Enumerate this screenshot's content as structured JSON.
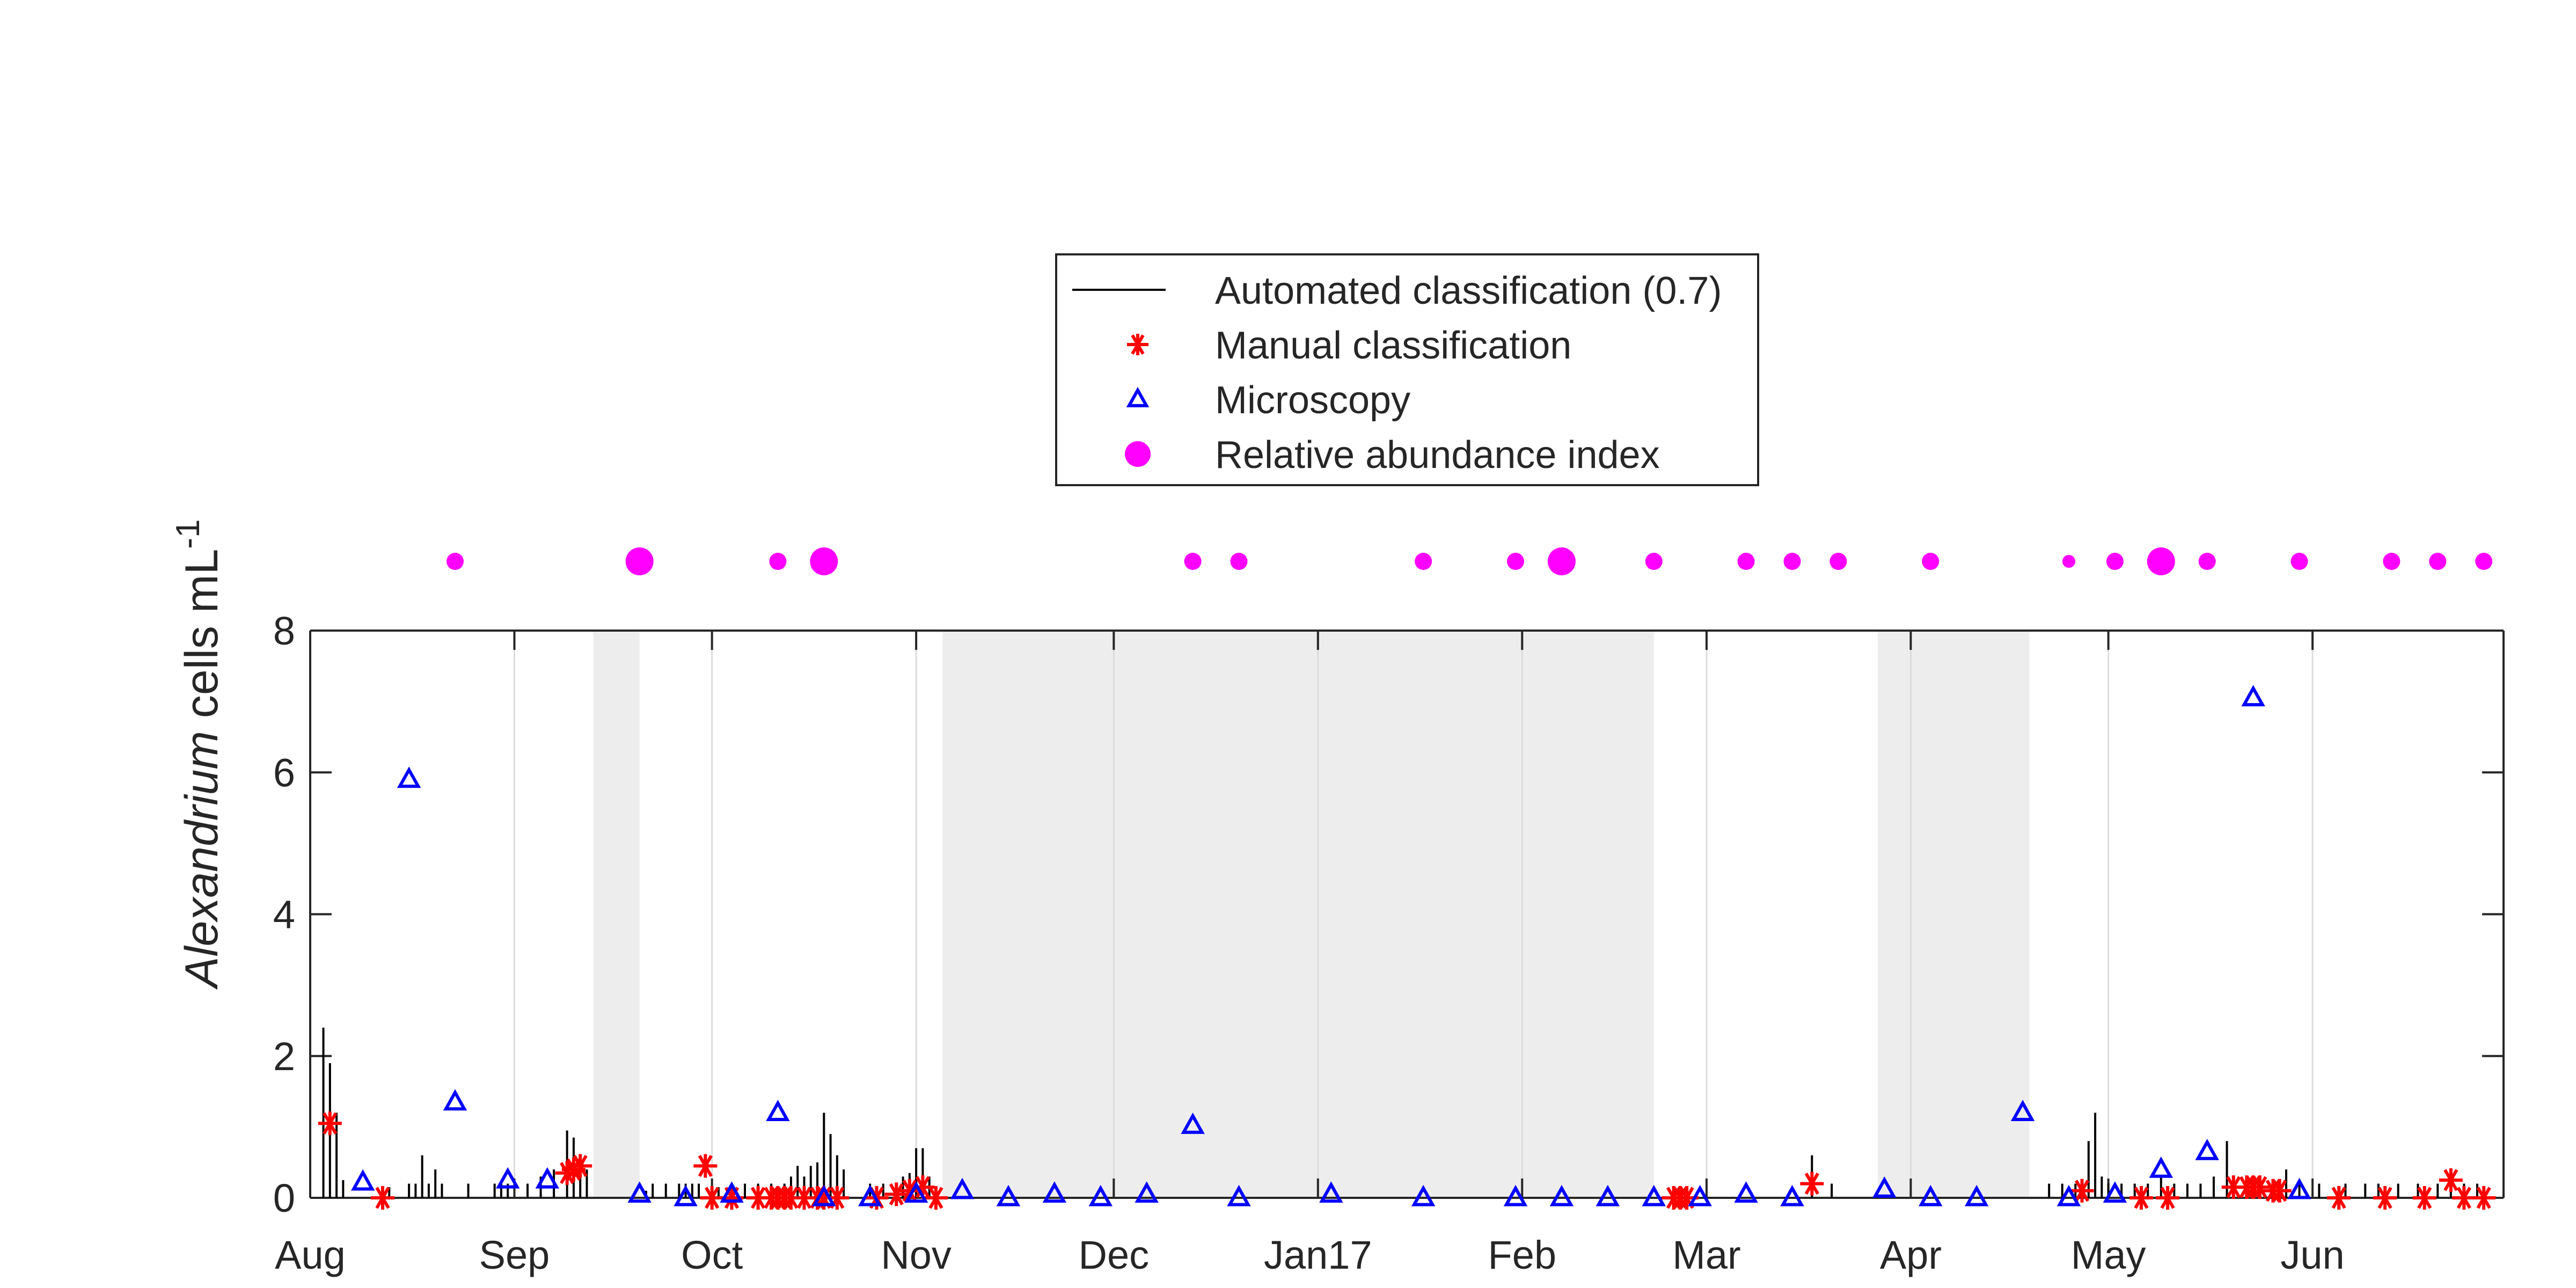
{
  "chart_data": {
    "type": "scatter",
    "title": "",
    "ylabel": {
      "italic": "Alexandrium",
      "normal": " cells mL",
      "sup": "-1"
    },
    "xlabel": "",
    "y_ticks": [
      0,
      2,
      4,
      6,
      8
    ],
    "ylim": [
      0,
      8
    ],
    "x_tick_labels": [
      "Aug",
      "Sep",
      "Oct",
      "Nov",
      "Dec",
      "Jan17",
      "Feb",
      "Mar",
      "Apr",
      "May",
      "Jun"
    ],
    "x_tick_dates": [
      "2016-08-01",
      "2016-09-01",
      "2016-10-01",
      "2016-11-01",
      "2016-12-01",
      "2017-01-01",
      "2017-02-01",
      "2017-03-01",
      "2017-04-01",
      "2017-05-01",
      "2017-06-01"
    ],
    "xlim": [
      "2016-08-01",
      "2017-06-30"
    ],
    "grid": "vertical at month ticks",
    "shaded_periods": [
      [
        "2016-09-13",
        "2016-09-20"
      ],
      [
        "2016-11-05",
        "2017-02-21"
      ],
      [
        "2017-03-27",
        "2017-04-19"
      ]
    ],
    "legend": {
      "placement": "top-center",
      "entries": [
        {
          "label": "Automated classification (0.7)",
          "marker": "line",
          "color": "#000000"
        },
        {
          "label": "Manual classification",
          "marker": "asterisk",
          "color": "#ff0000"
        },
        {
          "label": "Microscopy",
          "marker": "triangle",
          "color": "#0000ff"
        },
        {
          "label": "Relative abundance index",
          "marker": "filled-circle",
          "color": "#ff00ff"
        }
      ]
    },
    "series": [
      {
        "name": "Automated classification (0.7)",
        "style": "vertical-stems",
        "color": "#000000",
        "points": [
          [
            "2016-08-03",
            2.4
          ],
          [
            "2016-08-04",
            1.9
          ],
          [
            "2016-08-05",
            1.2
          ],
          [
            "2016-08-06",
            0.25
          ],
          [
            "2016-08-13",
            0.15
          ],
          [
            "2016-08-16",
            0.2
          ],
          [
            "2016-08-17",
            0.2
          ],
          [
            "2016-08-18",
            0.6
          ],
          [
            "2016-08-19",
            0.2
          ],
          [
            "2016-08-20",
            0.4
          ],
          [
            "2016-08-21",
            0.2
          ],
          [
            "2016-08-25",
            0.2
          ],
          [
            "2016-08-29",
            0.2
          ],
          [
            "2016-08-30",
            0.2
          ],
          [
            "2016-08-31",
            0.2
          ],
          [
            "2016-09-03",
            0.2
          ],
          [
            "2016-09-05",
            0.3
          ],
          [
            "2016-09-07",
            0.4
          ],
          [
            "2016-09-09",
            0.95
          ],
          [
            "2016-09-10",
            0.85
          ],
          [
            "2016-09-11",
            0.6
          ],
          [
            "2016-09-12",
            0.4
          ],
          [
            "2016-09-21",
            0.1
          ],
          [
            "2016-09-22",
            0.2
          ],
          [
            "2016-09-24",
            0.2
          ],
          [
            "2016-09-26",
            0.2
          ],
          [
            "2016-09-27",
            0.2
          ],
          [
            "2016-09-28",
            0.2
          ],
          [
            "2016-09-29",
            0.2
          ],
          [
            "2016-10-02",
            0.15
          ],
          [
            "2016-10-04",
            0.15
          ],
          [
            "2016-10-06",
            0.2
          ],
          [
            "2016-10-08",
            0.2
          ],
          [
            "2016-10-10",
            0.2
          ],
          [
            "2016-10-12",
            0.2
          ],
          [
            "2016-10-13",
            0.3
          ],
          [
            "2016-10-14",
            0.45
          ],
          [
            "2016-10-15",
            0.3
          ],
          [
            "2016-10-16",
            0.45
          ],
          [
            "2016-10-17",
            0.5
          ],
          [
            "2016-10-18",
            1.2
          ],
          [
            "2016-10-19",
            0.9
          ],
          [
            "2016-10-20",
            0.6
          ],
          [
            "2016-10-21",
            0.4
          ],
          [
            "2016-10-25",
            0.2
          ],
          [
            "2016-10-27",
            0.2
          ],
          [
            "2016-10-29",
            0.2
          ],
          [
            "2016-10-30",
            0.3
          ],
          [
            "2016-10-31",
            0.35
          ],
          [
            "2016-11-01",
            0.7
          ],
          [
            "2016-11-02",
            0.7
          ],
          [
            "2016-11-03",
            0.3
          ],
          [
            "2017-03-17",
            0.6
          ],
          [
            "2017-03-20",
            0.2
          ],
          [
            "2017-04-22",
            0.2
          ],
          [
            "2017-04-24",
            0.2
          ],
          [
            "2017-04-26",
            0.2
          ],
          [
            "2017-04-27",
            0.2
          ],
          [
            "2017-04-28",
            0.8
          ],
          [
            "2017-04-29",
            1.2
          ],
          [
            "2017-04-30",
            0.3
          ],
          [
            "2017-05-01",
            0.2
          ],
          [
            "2017-05-03",
            0.2
          ],
          [
            "2017-05-05",
            0.2
          ],
          [
            "2017-05-07",
            0.2
          ],
          [
            "2017-05-09",
            0.3
          ],
          [
            "2017-05-11",
            0.2
          ],
          [
            "2017-05-13",
            0.2
          ],
          [
            "2017-05-15",
            0.2
          ],
          [
            "2017-05-17",
            0.3
          ],
          [
            "2017-05-19",
            0.8
          ],
          [
            "2017-05-20",
            0.3
          ],
          [
            "2017-05-22",
            0.2
          ],
          [
            "2017-05-24",
            0.2
          ],
          [
            "2017-05-26",
            0.2
          ],
          [
            "2017-05-28",
            0.4
          ],
          [
            "2017-05-30",
            0.2
          ],
          [
            "2017-06-02",
            0.2
          ],
          [
            "2017-06-06",
            0.2
          ],
          [
            "2017-06-09",
            0.2
          ],
          [
            "2017-06-11",
            0.2
          ],
          [
            "2017-06-14",
            0.2
          ],
          [
            "2017-06-17",
            0.2
          ],
          [
            "2017-06-20",
            0.2
          ],
          [
            "2017-06-22",
            0.2
          ],
          [
            "2017-06-24",
            0.2
          ],
          [
            "2017-06-26",
            0.2
          ]
        ]
      },
      {
        "name": "Manual classification",
        "style": "asterisk",
        "color": "#ff0000",
        "points": [
          [
            "2016-08-04",
            1.05
          ],
          [
            "2016-08-12",
            0.0
          ],
          [
            "2016-09-09",
            0.35
          ],
          [
            "2016-09-10",
            0.4
          ],
          [
            "2016-09-11",
            0.45
          ],
          [
            "2016-09-30",
            0.45
          ],
          [
            "2016-10-01",
            0.0
          ],
          [
            "2016-10-04",
            0.0
          ],
          [
            "2016-10-08",
            0.0
          ],
          [
            "2016-10-10",
            0.0
          ],
          [
            "2016-10-11",
            0.0
          ],
          [
            "2016-10-12",
            0.0
          ],
          [
            "2016-10-13",
            0.0
          ],
          [
            "2016-10-15",
            0.0
          ],
          [
            "2016-10-17",
            0.0
          ],
          [
            "2016-10-18",
            0.0
          ],
          [
            "2016-10-20",
            0.0
          ],
          [
            "2016-10-26",
            0.0
          ],
          [
            "2016-10-29",
            0.05
          ],
          [
            "2016-10-31",
            0.1
          ],
          [
            "2016-11-02",
            0.15
          ],
          [
            "2016-11-04",
            0.0
          ],
          [
            "2017-02-24",
            0.0
          ],
          [
            "2017-02-25",
            0.0
          ],
          [
            "2017-02-26",
            0.0
          ],
          [
            "2017-03-17",
            0.2
          ],
          [
            "2017-04-27",
            0.1
          ],
          [
            "2017-05-06",
            0.0
          ],
          [
            "2017-05-10",
            0.0
          ],
          [
            "2017-05-20",
            0.15
          ],
          [
            "2017-05-22",
            0.15
          ],
          [
            "2017-05-23",
            0.15
          ],
          [
            "2017-05-24",
            0.15
          ],
          [
            "2017-05-26",
            0.1
          ],
          [
            "2017-05-27",
            0.1
          ],
          [
            "2017-06-05",
            0.0
          ],
          [
            "2017-06-12",
            0.0
          ],
          [
            "2017-06-18",
            0.0
          ],
          [
            "2017-06-22",
            0.25
          ],
          [
            "2017-06-24",
            0.0
          ],
          [
            "2017-06-27",
            0.0
          ]
        ]
      },
      {
        "name": "Microscopy",
        "style": "triangle",
        "color": "#0000ff",
        "points": [
          [
            "2016-08-09",
            0.22
          ],
          [
            "2016-08-16",
            5.9
          ],
          [
            "2016-08-23",
            1.35
          ],
          [
            "2016-08-31",
            0.25
          ],
          [
            "2016-09-06",
            0.25
          ],
          [
            "2016-09-20",
            0.05
          ],
          [
            "2016-09-27",
            0.0
          ],
          [
            "2016-10-04",
            0.05
          ],
          [
            "2016-10-11",
            1.2
          ],
          [
            "2016-10-18",
            0.0
          ],
          [
            "2016-10-25",
            0.0
          ],
          [
            "2016-11-01",
            0.05
          ],
          [
            "2016-11-08",
            0.1
          ],
          [
            "2016-11-15",
            0.0
          ],
          [
            "2016-11-22",
            0.05
          ],
          [
            "2016-11-29",
            0.0
          ],
          [
            "2016-12-06",
            0.05
          ],
          [
            "2016-12-13",
            1.02
          ],
          [
            "2016-12-20",
            0.0
          ],
          [
            "2017-01-03",
            0.05
          ],
          [
            "2017-01-17",
            0.0
          ],
          [
            "2017-01-31",
            0.0
          ],
          [
            "2017-02-07",
            0.0
          ],
          [
            "2017-02-14",
            0.0
          ],
          [
            "2017-02-21",
            0.0
          ],
          [
            "2017-02-28",
            0.0
          ],
          [
            "2017-03-07",
            0.05
          ],
          [
            "2017-03-14",
            0.0
          ],
          [
            "2017-03-28",
            0.12
          ],
          [
            "2017-04-04",
            0.0
          ],
          [
            "2017-04-11",
            0.0
          ],
          [
            "2017-04-18",
            1.2
          ],
          [
            "2017-04-25",
            0.0
          ],
          [
            "2017-05-02",
            0.05
          ],
          [
            "2017-05-09",
            0.4
          ],
          [
            "2017-05-16",
            0.65
          ],
          [
            "2017-05-23",
            7.05
          ],
          [
            "2017-05-30",
            0.1
          ]
        ]
      },
      {
        "name": "Relative abundance index",
        "style": "filled-circle",
        "color": "#ff00ff",
        "y_position": "above plot",
        "points": [
          {
            "x": "2016-08-23",
            "size": "small"
          },
          {
            "x": "2016-09-20",
            "size": "large"
          },
          {
            "x": "2016-10-11",
            "size": "small"
          },
          {
            "x": "2016-10-18",
            "size": "large"
          },
          {
            "x": "2016-12-13",
            "size": "small"
          },
          {
            "x": "2016-12-20",
            "size": "small"
          },
          {
            "x": "2017-01-17",
            "size": "small"
          },
          {
            "x": "2017-01-31",
            "size": "small"
          },
          {
            "x": "2017-02-07",
            "size": "large"
          },
          {
            "x": "2017-02-21",
            "size": "small"
          },
          {
            "x": "2017-03-07",
            "size": "small"
          },
          {
            "x": "2017-03-14",
            "size": "small"
          },
          {
            "x": "2017-03-21",
            "size": "small"
          },
          {
            "x": "2017-04-04",
            "size": "small"
          },
          {
            "x": "2017-04-25",
            "size": "tiny"
          },
          {
            "x": "2017-05-02",
            "size": "small"
          },
          {
            "x": "2017-05-09",
            "size": "large"
          },
          {
            "x": "2017-05-16",
            "size": "small"
          },
          {
            "x": "2017-05-30",
            "size": "small"
          },
          {
            "x": "2017-06-13",
            "size": "small"
          },
          {
            "x": "2017-06-20",
            "size": "small"
          },
          {
            "x": "2017-06-27",
            "size": "small"
          }
        ]
      }
    ]
  }
}
